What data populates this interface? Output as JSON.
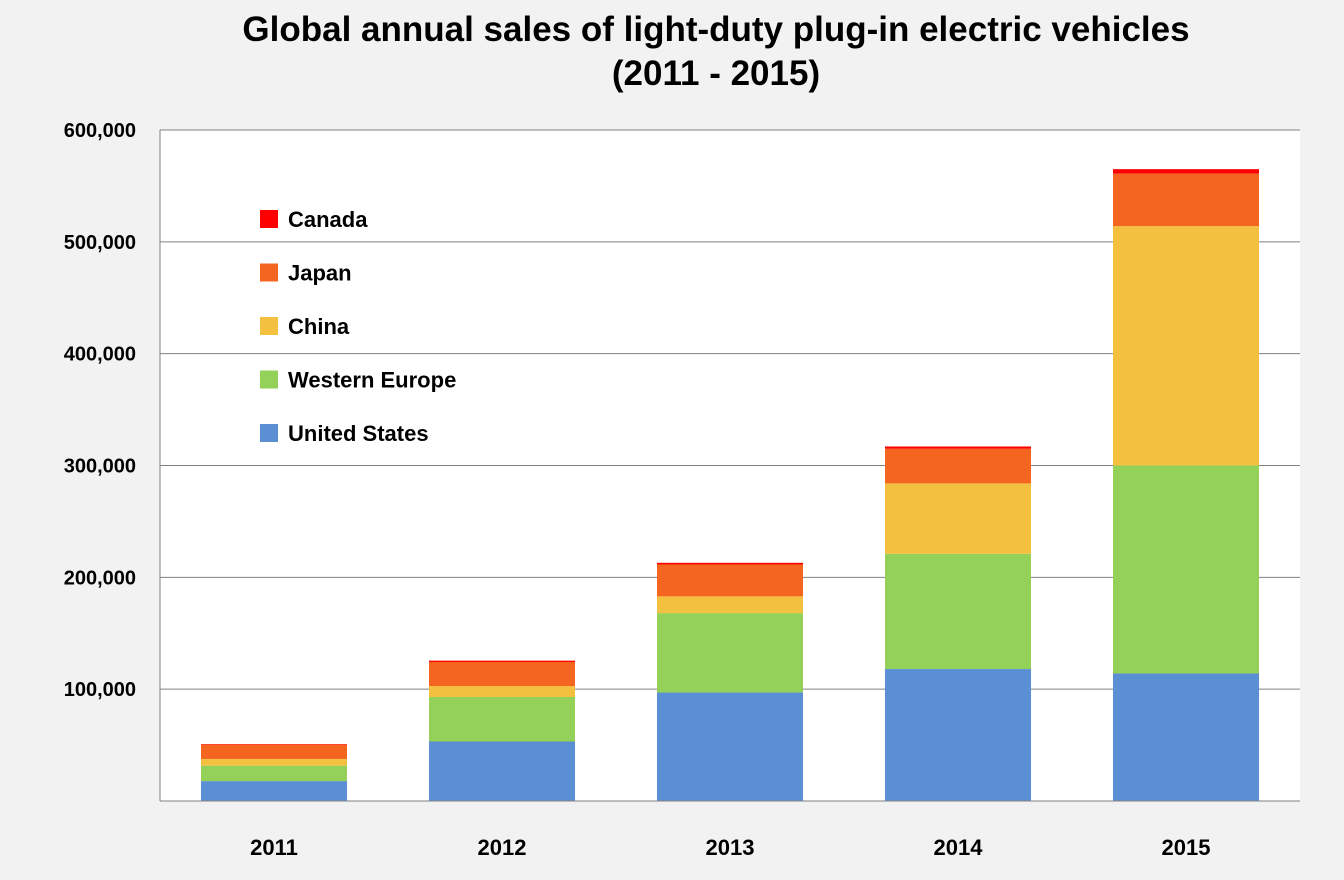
{
  "chart_data": {
    "type": "bar",
    "stacked": true,
    "title": "Global annual sales of light-duty plug-in electric vehicles",
    "subtitle": "(2011 - 2015)",
    "xlabel": "",
    "ylabel": "",
    "categories": [
      "2011",
      "2012",
      "2013",
      "2014",
      "2015"
    ],
    "ylim": [
      0,
      600000
    ],
    "yticks": [
      {
        "value": 100000,
        "label": "100,000"
      },
      {
        "value": 200000,
        "label": "200,000"
      },
      {
        "value": 300000,
        "label": "300,000"
      },
      {
        "value": 400000,
        "label": "400,000"
      },
      {
        "value": 500000,
        "label": "500,000"
      },
      {
        "value": 600000,
        "label": "600,000"
      }
    ],
    "grid": true,
    "legend_position": "top-left",
    "series": [
      {
        "name": "United States",
        "color": "#5b8fd3",
        "values": [
          17800,
          53200,
          97000,
          118000,
          114000
        ]
      },
      {
        "name": "Western Europe",
        "color": "#94d159",
        "values": [
          13800,
          39800,
          71000,
          103000,
          186000
        ]
      },
      {
        "name": "China",
        "color": "#f4c03f",
        "values": [
          6000,
          9800,
          15000,
          63000,
          214000
        ]
      },
      {
        "name": "Japan",
        "color": "#f46520",
        "values": [
          12800,
          21500,
          28500,
          31000,
          47000
        ]
      },
      {
        "name": "Canada",
        "color": "#ff0000",
        "values": [
          500,
          1200,
          1500,
          2000,
          4000
        ]
      }
    ],
    "legend_order": [
      "Canada",
      "Japan",
      "China",
      "Western Europe",
      "United States"
    ]
  }
}
